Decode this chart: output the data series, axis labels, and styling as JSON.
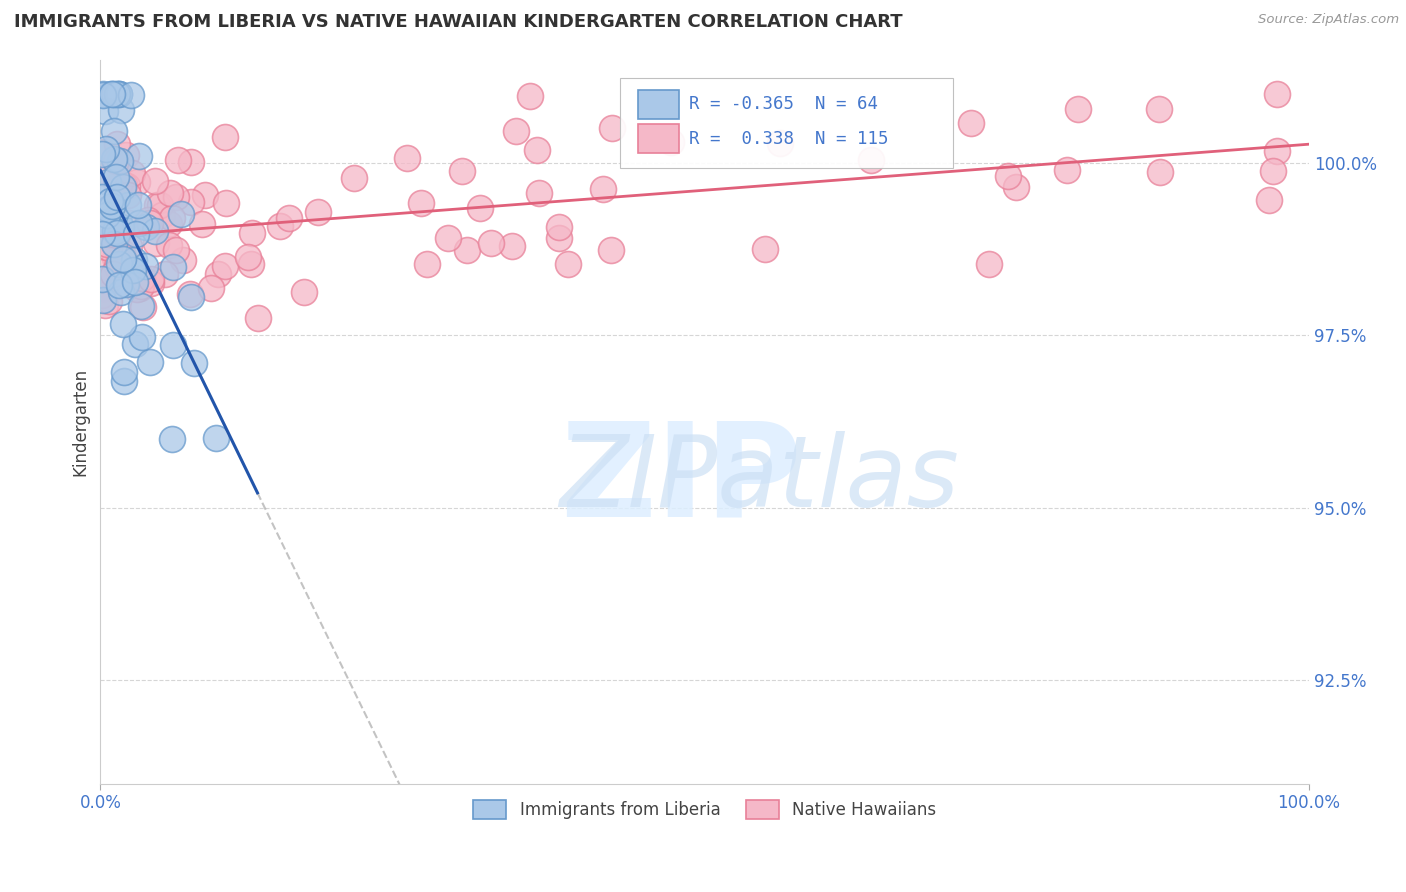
{
  "title": "IMMIGRANTS FROM LIBERIA VS NATIVE HAWAIIAN KINDERGARTEN CORRELATION CHART",
  "source_text": "Source: ZipAtlas.com",
  "ylabel": "Kindergarten",
  "xlim": [
    0.0,
    100.0
  ],
  "ylim": [
    91.0,
    101.5
  ],
  "yticks": [
    92.5,
    95.0,
    97.5,
    100.0
  ],
  "ytick_labels": [
    "92.5%",
    "95.0%",
    "97.5%",
    "100.0%"
  ],
  "xtick_labels": [
    "0.0%",
    "100.0%"
  ],
  "legend_entries": [
    {
      "label": "Immigrants from Liberia"
    },
    {
      "label": "Native Hawaiians"
    }
  ],
  "r_blue": -0.365,
  "n_blue": 64,
  "r_pink": 0.338,
  "n_pink": 115,
  "blue_face_color": "#aac8e8",
  "blue_edge_color": "#6699cc",
  "pink_face_color": "#f5b8c8",
  "pink_edge_color": "#e88098",
  "blue_line_color": "#2255aa",
  "pink_line_color": "#e0607a",
  "background_color": "#ffffff",
  "grid_color": "#cccccc",
  "title_color": "#333333",
  "tick_label_color": "#4477cc",
  "watermark_zip_color": "#ddeeff",
  "watermark_atlas_color": "#cce0f5"
}
